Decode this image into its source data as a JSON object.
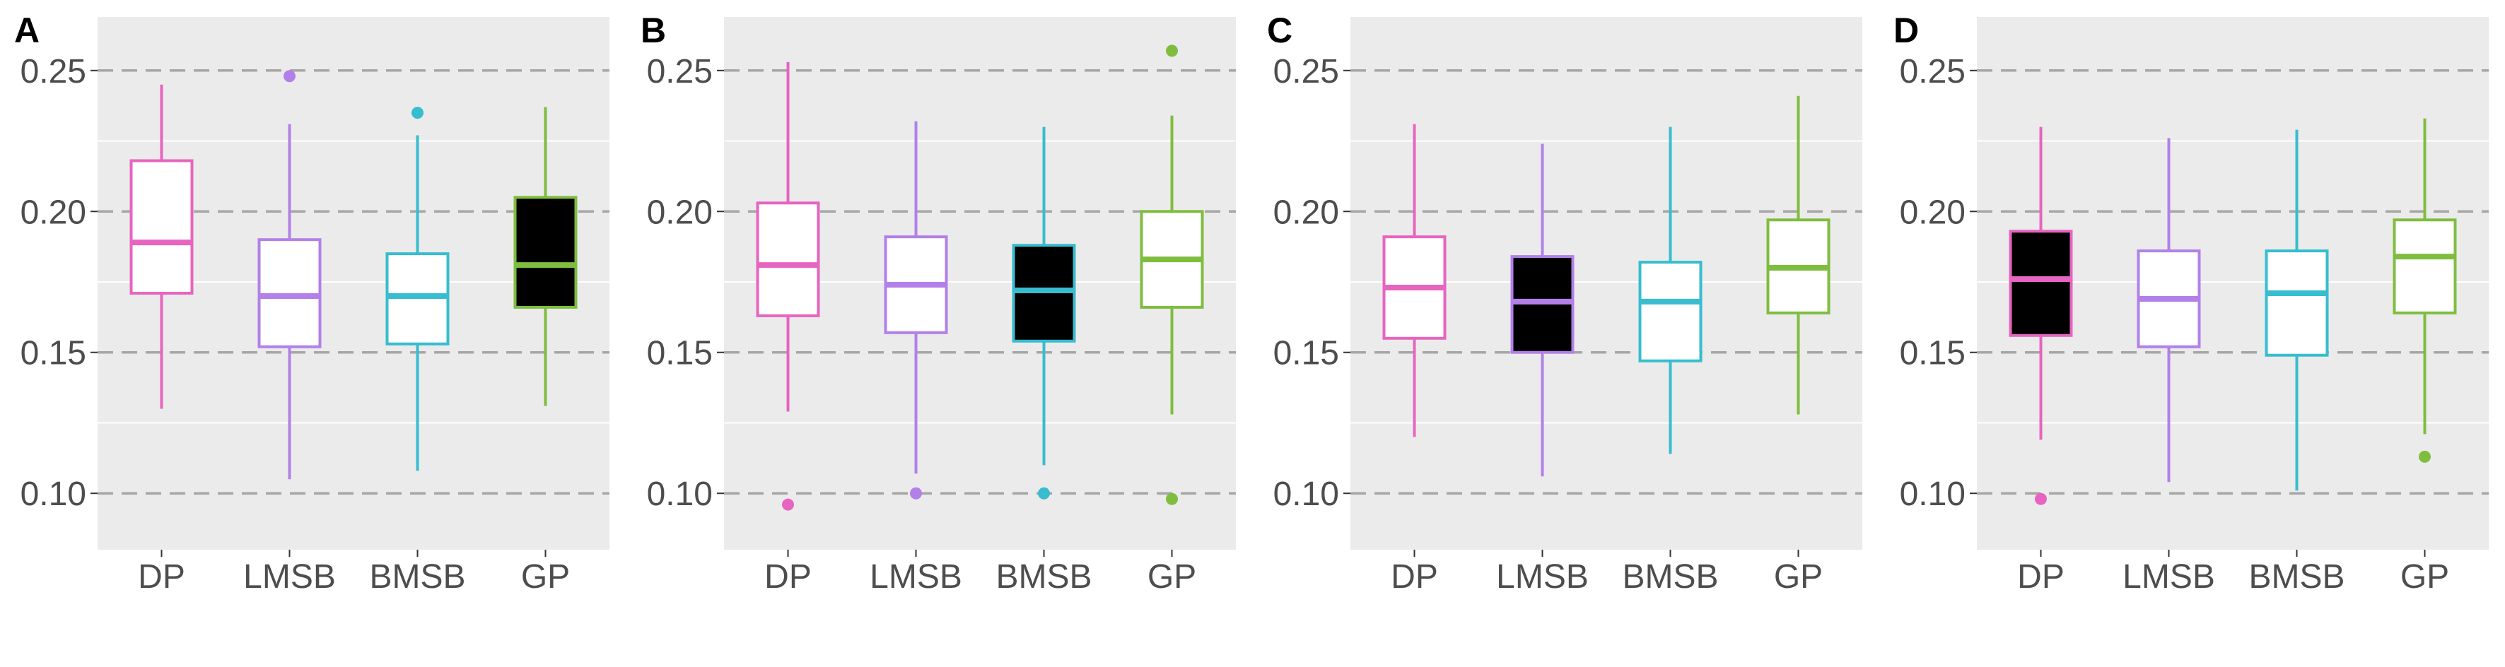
{
  "chart_data": [
    {
      "type": "box",
      "panel": "A",
      "categories": [
        "DP",
        "LMSB",
        "BMSB",
        "GP"
      ],
      "colors": [
        "#e764c0",
        "#b280e8",
        "#37bdcf",
        "#7fbd3f"
      ],
      "filled": [
        false,
        false,
        false,
        true
      ],
      "ylim": [
        0.08,
        0.269
      ],
      "yticks": [
        0.1,
        0.15,
        0.2,
        0.25
      ],
      "ytick_labels": [
        "0.10",
        "0.15",
        "0.20",
        "0.25"
      ],
      "dashed_lines": [
        0.1,
        0.15,
        0.2,
        0.25
      ],
      "boxes": [
        {
          "whisker_low": 0.13,
          "q1": 0.171,
          "median": 0.189,
          "q3": 0.218,
          "whisker_high": 0.245,
          "outliers": []
        },
        {
          "whisker_low": 0.105,
          "q1": 0.152,
          "median": 0.17,
          "q3": 0.19,
          "whisker_high": 0.231,
          "outliers": [
            0.248
          ]
        },
        {
          "whisker_low": 0.108,
          "q1": 0.153,
          "median": 0.17,
          "q3": 0.185,
          "whisker_high": 0.227,
          "outliers": [
            0.235
          ]
        },
        {
          "whisker_low": 0.131,
          "q1": 0.166,
          "median": 0.181,
          "q3": 0.205,
          "whisker_high": 0.237,
          "outliers": []
        }
      ]
    },
    {
      "type": "box",
      "panel": "B",
      "categories": [
        "DP",
        "LMSB",
        "BMSB",
        "GP"
      ],
      "colors": [
        "#e764c0",
        "#b280e8",
        "#37bdcf",
        "#7fbd3f"
      ],
      "filled": [
        false,
        false,
        true,
        false
      ],
      "ylim": [
        0.08,
        0.269
      ],
      "yticks": [
        0.1,
        0.15,
        0.2,
        0.25
      ],
      "ytick_labels": [
        "0.10",
        "0.15",
        "0.20",
        "0.25"
      ],
      "dashed_lines": [
        0.1,
        0.15,
        0.2,
        0.25
      ],
      "boxes": [
        {
          "whisker_low": 0.129,
          "q1": 0.163,
          "median": 0.181,
          "q3": 0.203,
          "whisker_high": 0.253,
          "outliers": [
            0.096
          ]
        },
        {
          "whisker_low": 0.107,
          "q1": 0.157,
          "median": 0.174,
          "q3": 0.191,
          "whisker_high": 0.232,
          "outliers": [
            0.1
          ]
        },
        {
          "whisker_low": 0.11,
          "q1": 0.154,
          "median": 0.172,
          "q3": 0.188,
          "whisker_high": 0.23,
          "outliers": [
            0.1
          ]
        },
        {
          "whisker_low": 0.128,
          "q1": 0.166,
          "median": 0.183,
          "q3": 0.2,
          "whisker_high": 0.234,
          "outliers": [
            0.098,
            0.257
          ]
        }
      ]
    },
    {
      "type": "box",
      "panel": "C",
      "categories": [
        "DP",
        "LMSB",
        "BMSB",
        "GP"
      ],
      "colors": [
        "#e764c0",
        "#b280e8",
        "#37bdcf",
        "#7fbd3f"
      ],
      "filled": [
        false,
        true,
        false,
        false
      ],
      "ylim": [
        0.08,
        0.269
      ],
      "yticks": [
        0.1,
        0.15,
        0.2,
        0.25
      ],
      "ytick_labels": [
        "0.10",
        "0.15",
        "0.20",
        "0.25"
      ],
      "dashed_lines": [
        0.1,
        0.15,
        0.2,
        0.25
      ],
      "boxes": [
        {
          "whisker_low": 0.12,
          "q1": 0.155,
          "median": 0.173,
          "q3": 0.191,
          "whisker_high": 0.231,
          "outliers": []
        },
        {
          "whisker_low": 0.106,
          "q1": 0.15,
          "median": 0.168,
          "q3": 0.184,
          "whisker_high": 0.224,
          "outliers": []
        },
        {
          "whisker_low": 0.114,
          "q1": 0.147,
          "median": 0.168,
          "q3": 0.182,
          "whisker_high": 0.23,
          "outliers": []
        },
        {
          "whisker_low": 0.128,
          "q1": 0.164,
          "median": 0.18,
          "q3": 0.197,
          "whisker_high": 0.241,
          "outliers": []
        }
      ]
    },
    {
      "type": "box",
      "panel": "D",
      "categories": [
        "DP",
        "LMSB",
        "BMSB",
        "GP"
      ],
      "colors": [
        "#e764c0",
        "#b280e8",
        "#37bdcf",
        "#7fbd3f"
      ],
      "filled": [
        true,
        false,
        false,
        false
      ],
      "ylim": [
        0.08,
        0.269
      ],
      "yticks": [
        0.1,
        0.15,
        0.2,
        0.25
      ],
      "ytick_labels": [
        "0.10",
        "0.15",
        "0.20",
        "0.25"
      ],
      "dashed_lines": [
        0.1,
        0.15,
        0.2,
        0.25
      ],
      "boxes": [
        {
          "whisker_low": 0.119,
          "q1": 0.156,
          "median": 0.176,
          "q3": 0.193,
          "whisker_high": 0.23,
          "outliers": [
            0.098
          ]
        },
        {
          "whisker_low": 0.104,
          "q1": 0.152,
          "median": 0.169,
          "q3": 0.186,
          "whisker_high": 0.226,
          "outliers": []
        },
        {
          "whisker_low": 0.101,
          "q1": 0.149,
          "median": 0.171,
          "q3": 0.186,
          "whisker_high": 0.229,
          "outliers": []
        },
        {
          "whisker_low": 0.121,
          "q1": 0.164,
          "median": 0.184,
          "q3": 0.197,
          "whisker_high": 0.233,
          "outliers": [
            0.113
          ]
        }
      ]
    }
  ]
}
